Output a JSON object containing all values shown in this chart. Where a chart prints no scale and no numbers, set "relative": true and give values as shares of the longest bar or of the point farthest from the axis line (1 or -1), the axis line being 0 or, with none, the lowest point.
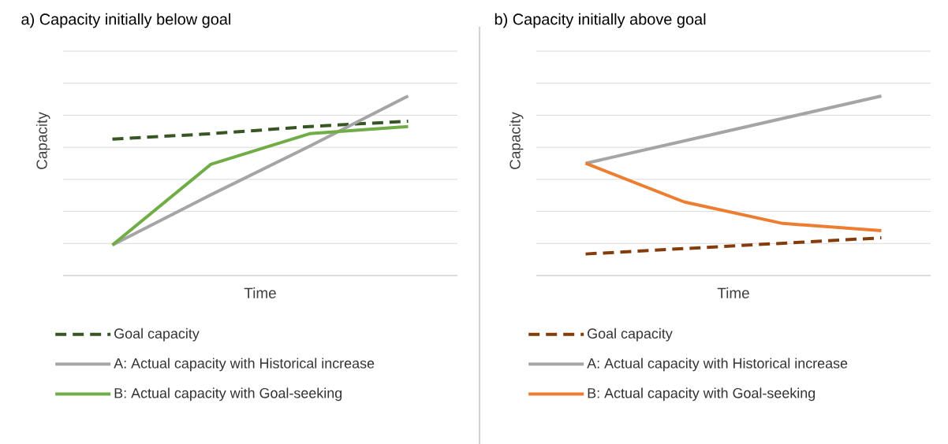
{
  "chart_data": [
    {
      "type": "line",
      "title": "a)  Capacity initially below goal",
      "xlabel": "Time",
      "ylabel": "Capacity",
      "relative": true,
      "grid": "y",
      "legend": "bottom",
      "tick_labels": false,
      "categories": [
        null,
        null,
        null,
        null
      ],
      "series": [
        {
          "name": "Goal capacity",
          "color": "#375623",
          "line_style": "dashed",
          "values": [
            0.76,
            0.79,
            0.83,
            0.86
          ]
        },
        {
          "name": "A: Actual capacity with Historical increase",
          "color": "#a5a5a5",
          "values": [
            0.17,
            0.45,
            0.72,
            1
          ]
        },
        {
          "name": "B: Actual capacity with Goal-seeking",
          "color": "#70ad47",
          "values": [
            0.17,
            0.62,
            0.79,
            0.83
          ]
        }
      ]
    },
    {
      "type": "line",
      "title": "b)  Capacity initially above goal",
      "xlabel": "Time",
      "ylabel": "Capacity",
      "relative": true,
      "grid": "y",
      "legend": "bottom",
      "tick_labels": false,
      "categories": [
        null,
        null,
        null,
        null
      ],
      "series": [
        {
          "name": "Goal capacity",
          "color": "#843c0c",
          "line_style": "dashed",
          "values": [
            0.12,
            0.15,
            0.18,
            0.21
          ]
        },
        {
          "name": "A: Actual capacity with Historical increase",
          "color": "#a5a5a5",
          "values": [
            0.625,
            0.75,
            0.875,
            1
          ]
        },
        {
          "name": "B: Actual capacity with Goal-seeking",
          "color": "#ed7d31",
          "values": [
            0.625,
            0.41,
            0.29,
            0.25
          ]
        }
      ]
    }
  ]
}
